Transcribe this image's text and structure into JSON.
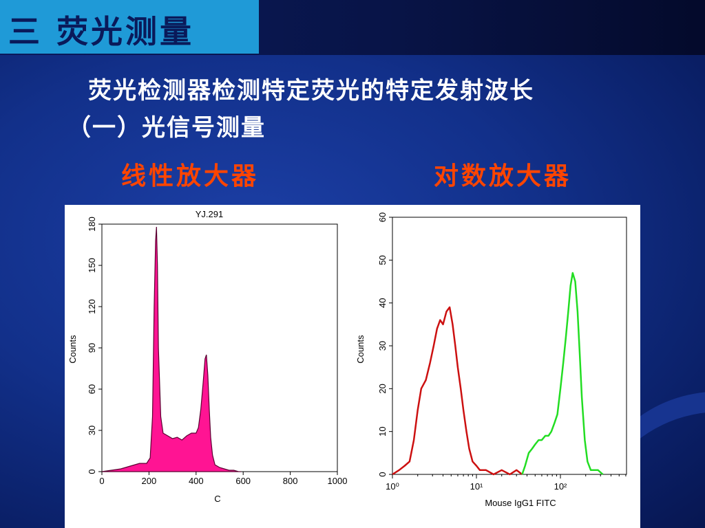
{
  "slide": {
    "title": "三 荧光测量",
    "line1": "荧光检测器检测特定荧光的特定发射波长",
    "line2": "（一）光信号测量",
    "label_left": "线性放大器",
    "label_right": "对数放大器"
  },
  "chart_data": [
    {
      "type": "area",
      "title": "YJ.291",
      "xlabel": "C",
      "ylabel": "Counts",
      "xlim": [
        0,
        1000
      ],
      "ylim": [
        0,
        180
      ],
      "x_ticks": [
        "0",
        "200",
        "400",
        "600",
        "800",
        "1000"
      ],
      "y_ticks": [
        "0",
        "30",
        "60",
        "90",
        "120",
        "150",
        "180"
      ],
      "color": "#ff1493",
      "x": [
        0,
        40,
        80,
        120,
        160,
        190,
        205,
        215,
        222,
        228,
        232,
        236,
        240,
        250,
        260,
        280,
        300,
        320,
        340,
        360,
        380,
        400,
        410,
        420,
        430,
        438,
        444,
        450,
        456,
        462,
        470,
        480,
        500,
        520,
        540,
        560,
        580,
        590
      ],
      "y": [
        0,
        1,
        2,
        4,
        6,
        6,
        10,
        40,
        120,
        168,
        178,
        150,
        90,
        40,
        28,
        26,
        24,
        25,
        23,
        26,
        28,
        28,
        32,
        45,
        65,
        82,
        85,
        70,
        45,
        25,
        12,
        5,
        3,
        2,
        1,
        1,
        0,
        0
      ]
    },
    {
      "type": "line",
      "xlabel": "Mouse IgG1 FITC",
      "ylabel": "Counts",
      "xscale": "log",
      "xlim": [
        1,
        500
      ],
      "ylim": [
        0,
        60
      ],
      "x_ticks": [
        "10⁰",
        "10¹",
        "10²"
      ],
      "y_ticks": [
        "0",
        "10",
        "20",
        "30",
        "40",
        "50",
        "60"
      ],
      "series": [
        {
          "color": "#cc1010",
          "x": [
            1,
            1.2,
            1.4,
            1.6,
            1.8,
            2.0,
            2.2,
            2.5,
            2.8,
            3.1,
            3.4,
            3.7,
            4.0,
            4.4,
            4.8,
            5.2,
            5.6,
            6.0,
            6.5,
            7.0,
            7.6,
            8.2,
            9.0,
            10,
            11,
            13,
            16,
            20,
            25,
            30,
            35
          ],
          "y": [
            0,
            1,
            2,
            3,
            8,
            15,
            20,
            22,
            26,
            30,
            34,
            36,
            35,
            38,
            39,
            35,
            30,
            25,
            20,
            15,
            10,
            6,
            3,
            2,
            1,
            1,
            0,
            1,
            0,
            1,
            0
          ]
        },
        {
          "color": "#22dd22",
          "x": [
            35,
            38,
            42,
            46,
            50,
            55,
            60,
            66,
            72,
            78,
            85,
            92,
            100,
            108,
            116,
            124,
            132,
            140,
            150,
            160,
            170,
            180,
            195,
            210,
            230,
            250,
            280,
            320
          ],
          "y": [
            0,
            2,
            5,
            6,
            7,
            8,
            8,
            9,
            9,
            10,
            12,
            14,
            20,
            26,
            32,
            38,
            44,
            47,
            45,
            38,
            28,
            18,
            8,
            3,
            1,
            1,
            1,
            0
          ]
        }
      ]
    }
  ]
}
